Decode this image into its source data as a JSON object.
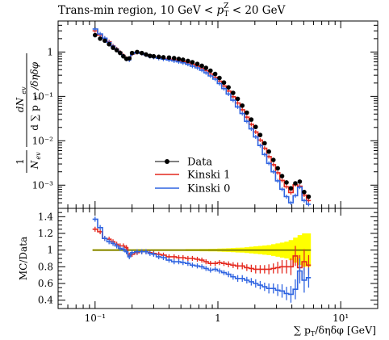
{
  "chart_data": [
    {
      "type": "line",
      "title": "Trans-min region, 10 GeV < pT^Z < 20 GeV",
      "title_parts": {
        "prefix": "Trans-min region, 10 GeV < ",
        "var": "p",
        "sup": "Z",
        "sub": "T",
        "suffix": " < 20 GeV"
      },
      "ylabel": "1/N_ev dN_ev/d∑pT/δηδφ",
      "ylabel_parts": {
        "frac1_num": "1",
        "frac1_den": "N",
        "frac1_den_sub": "ev",
        "frac2_num": "dN",
        "frac2_num_sub": "ev",
        "frac2_den": "d ∑ p",
        "frac2_den_sub": "T",
        "frac2_den_tail": "/δηδφ"
      },
      "xscale": "log",
      "yscale": "log",
      "xlim": [
        0.05,
        20
      ],
      "ylim": [
        0.0003,
        5
      ],
      "xticks": [
        "10⁻¹",
        "1",
        "10¹"
      ],
      "yticks": [
        {
          "value": 1,
          "label": "1"
        },
        {
          "value": 0.1,
          "label": "10⁻¹"
        },
        {
          "value": 0.01,
          "label": "10⁻²"
        },
        {
          "value": 0.001,
          "label": "10⁻³"
        }
      ],
      "legend_position": "center",
      "legend": [
        "Data",
        "Kinski 1",
        "Kinski 0"
      ],
      "x": [
        0.1,
        0.11,
        0.12,
        0.13,
        0.14,
        0.15,
        0.16,
        0.17,
        0.18,
        0.19,
        0.2,
        0.22,
        0.24,
        0.26,
        0.28,
        0.3,
        0.33,
        0.36,
        0.4,
        0.44,
        0.48,
        0.52,
        0.57,
        0.62,
        0.68,
        0.74,
        0.8,
        0.87,
        0.95,
        1.03,
        1.12,
        1.22,
        1.33,
        1.45,
        1.58,
        1.72,
        1.87,
        2.03,
        2.21,
        2.4,
        2.6,
        2.83,
        3.07,
        3.33,
        3.62,
        3.93,
        4.27,
        4.64,
        5.04,
        5.48
      ],
      "series": [
        {
          "name": "Data",
          "color": "#000000",
          "style": "points",
          "values": [
            2.4,
            2.0,
            1.8,
            1.5,
            1.25,
            1.1,
            0.95,
            0.8,
            0.7,
            0.72,
            0.95,
            1.0,
            0.95,
            0.88,
            0.82,
            0.8,
            0.78,
            0.76,
            0.75,
            0.73,
            0.7,
            0.67,
            0.63,
            0.59,
            0.54,
            0.49,
            0.44,
            0.38,
            0.32,
            0.26,
            0.205,
            0.16,
            0.12,
            0.088,
            0.062,
            0.043,
            0.03,
            0.0205,
            0.0135,
            0.0088,
            0.0057,
            0.0037,
            0.0024,
            0.0016,
            0.00115,
            0.00085,
            0.0011,
            0.0012,
            0.0007,
            0.00055
          ]
        },
        {
          "name": "Kinski 1",
          "color": "#e4281e",
          "style": "step",
          "values": [
            3.0,
            2.4,
            2.05,
            1.7,
            1.38,
            1.18,
            1.0,
            0.84,
            0.72,
            0.68,
            0.9,
            0.97,
            0.93,
            0.86,
            0.8,
            0.77,
            0.74,
            0.71,
            0.69,
            0.67,
            0.64,
            0.61,
            0.57,
            0.53,
            0.48,
            0.43,
            0.38,
            0.32,
            0.27,
            0.22,
            0.172,
            0.132,
            0.098,
            0.071,
            0.05,
            0.034,
            0.0235,
            0.0158,
            0.0104,
            0.0068,
            0.0044,
            0.0029,
            0.0019,
            0.00128,
            0.00092,
            0.00068,
            0.00102,
            0.00095,
            0.0006,
            0.00045
          ]
        },
        {
          "name": "Kinski 0",
          "color": "#2f64e1",
          "style": "step",
          "values": [
            3.3,
            2.55,
            2.05,
            1.65,
            1.35,
            1.15,
            0.97,
            0.81,
            0.69,
            0.66,
            0.92,
            0.98,
            0.93,
            0.86,
            0.79,
            0.76,
            0.72,
            0.69,
            0.66,
            0.63,
            0.6,
            0.57,
            0.53,
            0.48,
            0.44,
            0.39,
            0.34,
            0.29,
            0.245,
            0.195,
            0.15,
            0.113,
            0.082,
            0.058,
            0.041,
            0.0275,
            0.0185,
            0.0122,
            0.0078,
            0.0049,
            0.0031,
            0.002,
            0.00125,
            0.00081,
            0.00055,
            0.0004,
            0.00058,
            0.0009,
            0.00045,
            0.00037
          ]
        }
      ]
    },
    {
      "type": "line",
      "title": "",
      "ylabel": "MC/Data",
      "xlabel": "∑ pT/δηδφ [GeV]",
      "xlabel_parts": {
        "prefix": "∑ p",
        "sub": "T",
        "suffix": "/δηδφ [GeV]"
      },
      "xscale": "log",
      "xlim": [
        0.05,
        20
      ],
      "ylim": [
        0.3,
        1.5
      ],
      "xticks": [
        "10⁻¹",
        "1",
        "10¹"
      ],
      "yticks": [
        "0.4",
        "0.6",
        "0.8",
        "1",
        "1.2",
        "1.4"
      ],
      "reference": {
        "value": 1.0,
        "color": "#6b6b00"
      },
      "band_color": "#ffff00",
      "x": [
        0.1,
        0.11,
        0.12,
        0.13,
        0.14,
        0.15,
        0.16,
        0.17,
        0.18,
        0.19,
        0.2,
        0.22,
        0.24,
        0.26,
        0.28,
        0.3,
        0.33,
        0.36,
        0.4,
        0.44,
        0.48,
        0.52,
        0.57,
        0.62,
        0.68,
        0.74,
        0.8,
        0.87,
        0.95,
        1.03,
        1.12,
        1.22,
        1.33,
        1.45,
        1.58,
        1.72,
        1.87,
        2.03,
        2.21,
        2.4,
        2.6,
        2.83,
        3.07,
        3.33,
        3.62,
        3.93,
        4.27,
        4.64,
        5.04,
        5.48
      ],
      "band_halfwidth": [
        0.01,
        0.01,
        0.01,
        0.01,
        0.01,
        0.01,
        0.01,
        0.01,
        0.01,
        0.01,
        0.01,
        0.01,
        0.01,
        0.01,
        0.01,
        0.01,
        0.01,
        0.01,
        0.01,
        0.01,
        0.01,
        0.01,
        0.012,
        0.012,
        0.012,
        0.014,
        0.014,
        0.015,
        0.016,
        0.018,
        0.02,
        0.022,
        0.025,
        0.028,
        0.03,
        0.035,
        0.04,
        0.045,
        0.05,
        0.055,
        0.06,
        0.07,
        0.08,
        0.09,
        0.1,
        0.12,
        0.15,
        0.18,
        0.2,
        0.2
      ],
      "series": [
        {
          "name": "Kinski 1",
          "color": "#e4281e",
          "values": [
            1.25,
            1.22,
            1.14,
            1.13,
            1.1,
            1.07,
            1.05,
            1.05,
            1.03,
            0.94,
            0.95,
            0.97,
            0.98,
            0.98,
            0.97,
            0.96,
            0.95,
            0.94,
            0.92,
            0.92,
            0.91,
            0.91,
            0.9,
            0.9,
            0.89,
            0.88,
            0.86,
            0.84,
            0.84,
            0.85,
            0.84,
            0.83,
            0.82,
            0.81,
            0.81,
            0.79,
            0.78,
            0.77,
            0.77,
            0.77,
            0.77,
            0.78,
            0.79,
            0.8,
            0.8,
            0.8,
            0.93,
            0.79,
            0.86,
            0.82
          ],
          "err": [
            0.03,
            0.03,
            0.03,
            0.03,
            0.03,
            0.03,
            0.03,
            0.03,
            0.03,
            0.03,
            0.03,
            0.03,
            0.03,
            0.03,
            0.03,
            0.03,
            0.03,
            0.03,
            0.03,
            0.03,
            0.03,
            0.03,
            0.03,
            0.03,
            0.03,
            0.03,
            0.03,
            0.03,
            0.03,
            0.03,
            0.03,
            0.035,
            0.035,
            0.04,
            0.04,
            0.04,
            0.045,
            0.05,
            0.05,
            0.05,
            0.06,
            0.06,
            0.07,
            0.08,
            0.08,
            0.1,
            0.12,
            0.15,
            0.15,
            0.12
          ]
        },
        {
          "name": "Kinski 0",
          "color": "#2f64e1",
          "values": [
            1.37,
            1.27,
            1.14,
            1.1,
            1.08,
            1.05,
            1.02,
            1.01,
            0.98,
            0.92,
            0.97,
            0.98,
            0.98,
            0.98,
            0.96,
            0.95,
            0.92,
            0.91,
            0.88,
            0.86,
            0.86,
            0.85,
            0.84,
            0.82,
            0.81,
            0.8,
            0.78,
            0.76,
            0.77,
            0.75,
            0.73,
            0.71,
            0.68,
            0.66,
            0.66,
            0.64,
            0.62,
            0.6,
            0.58,
            0.56,
            0.54,
            0.54,
            0.52,
            0.51,
            0.48,
            0.47,
            0.53,
            0.75,
            0.64,
            0.67
          ],
          "err": [
            0.03,
            0.03,
            0.03,
            0.03,
            0.03,
            0.03,
            0.03,
            0.03,
            0.03,
            0.03,
            0.03,
            0.03,
            0.03,
            0.03,
            0.03,
            0.03,
            0.03,
            0.03,
            0.03,
            0.03,
            0.03,
            0.03,
            0.03,
            0.03,
            0.03,
            0.03,
            0.03,
            0.03,
            0.03,
            0.03,
            0.03,
            0.035,
            0.035,
            0.04,
            0.04,
            0.04,
            0.045,
            0.05,
            0.05,
            0.05,
            0.06,
            0.06,
            0.07,
            0.08,
            0.08,
            0.1,
            0.12,
            0.15,
            0.15,
            0.12
          ]
        }
      ]
    }
  ]
}
